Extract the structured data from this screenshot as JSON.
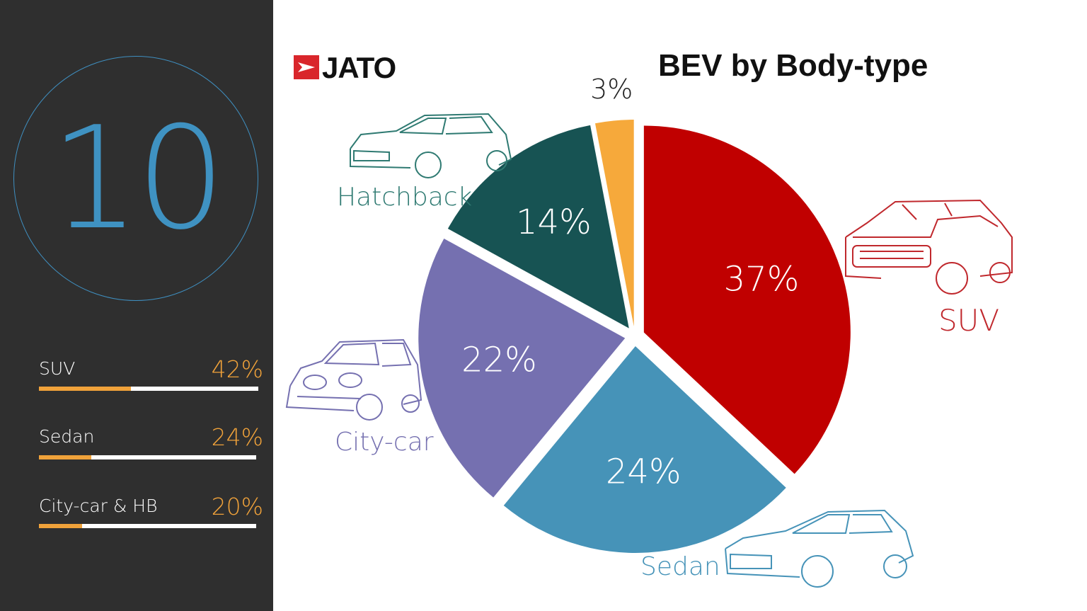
{
  "sidebar": {
    "big_number": "10",
    "stats": [
      {
        "label": "SUV",
        "value": "42%",
        "fraction": 0.42
      },
      {
        "label": "Sedan",
        "value": "24%",
        "fraction": 0.24
      },
      {
        "label": "City-car & HB",
        "value": "20%",
        "fraction": 0.2
      }
    ]
  },
  "logo": {
    "text": "JATO"
  },
  "title": "BEV by Body-type",
  "colors": {
    "sidebar_bg": "#2f2f2f",
    "accent_blue": "#3f92c2",
    "accent_orange": "#f0a23a"
  },
  "chart_data": {
    "type": "pie",
    "title": "BEV by Body-type",
    "slices": [
      {
        "name": "SUV",
        "value": 37,
        "label": "37%",
        "color": "#c00000"
      },
      {
        "name": "Sedan",
        "value": 24,
        "label": "24%",
        "color": "#4693b8"
      },
      {
        "name": "City-car",
        "value": 22,
        "label": "22%",
        "color": "#7570b0"
      },
      {
        "name": "Hatchback",
        "value": 14,
        "label": "14%",
        "color": "#175353"
      },
      {
        "name": "",
        "value": 3,
        "label": "3%",
        "color": "#f6a93b"
      }
    ]
  }
}
